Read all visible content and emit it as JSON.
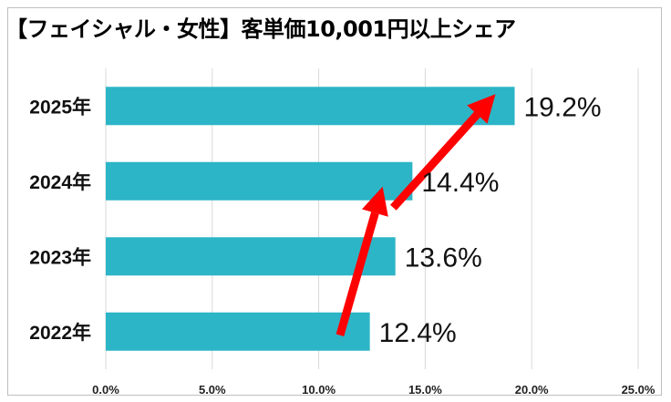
{
  "chart_data": {
    "type": "bar",
    "orientation": "horizontal",
    "title": "【フェイシャル・女性】客単価10,001円以上シェア",
    "categories": [
      "2025年",
      "2024年",
      "2023年",
      "2022年"
    ],
    "values": [
      19.2,
      14.4,
      13.6,
      12.4
    ],
    "data_labels": [
      "19.2%",
      "14.4%",
      "13.6%",
      "12.4%"
    ],
    "xlim": [
      0,
      25
    ],
    "xticks": [
      0,
      5,
      10,
      15,
      20,
      25
    ],
    "xtick_labels": [
      "0.0%",
      "5.0%",
      "10.0%",
      "15.0%",
      "20.0%",
      "25.0%"
    ],
    "xlabel": "",
    "ylabel": "",
    "grid": true,
    "legend": "none",
    "colors": {
      "bar": "#2cb5c7",
      "grid": "#d9d9d9",
      "arrow": "#ff0000"
    },
    "annotations": [
      {
        "type": "arrow",
        "from": {
          "category": "2022年",
          "value": 11.0
        },
        "to": {
          "category": "2024年",
          "value": 13.0
        }
      },
      {
        "type": "arrow",
        "from": {
          "category": "2024年",
          "value": 13.5
        },
        "to": {
          "category": "2025年",
          "value": 18.3
        }
      }
    ]
  }
}
